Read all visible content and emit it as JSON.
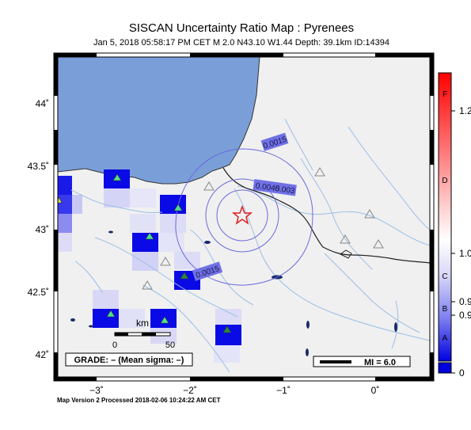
{
  "header": {
    "title": "SISCAN Uncertainty Ratio Map : Pyrenees",
    "subtitle": "Jan  5, 2018 05:58:17 PM CET   M 2.0   N43.10 W1.44   Depth: 39.1km   ID:14394"
  },
  "map": {
    "lat_labels": [
      "44˚",
      "43.5˚",
      "43˚",
      "42.5˚",
      "42˚"
    ],
    "lon_labels": [
      "−3˚",
      "−2˚",
      "−1˚",
      "0˚"
    ],
    "contour_labels": [
      "0.0015",
      "0.003",
      "0.0045",
      "0.0015"
    ],
    "scale": {
      "title": "km",
      "start": "0",
      "end": "50"
    },
    "grade_text": "GRADE: – (Mean sigma: –)",
    "mi_label": "MI = 6.0",
    "colors": {
      "sea": "#7a9fd8",
      "land": "#f0f0f0",
      "rivers": "#9bbde6",
      "cells": "#0a0ae6",
      "contours": "#6a6adc",
      "epicenter": "#e02020"
    }
  },
  "colorbar": {
    "grade_letters": [
      "F",
      "D",
      "C",
      "B",
      "A"
    ],
    "values": [
      "1.2",
      "1.0",
      "0.9",
      "0.9",
      "0"
    ]
  },
  "footer": {
    "text": "Map Version 2 Processed 2018-02-06 10:24:22 AM CET"
  }
}
